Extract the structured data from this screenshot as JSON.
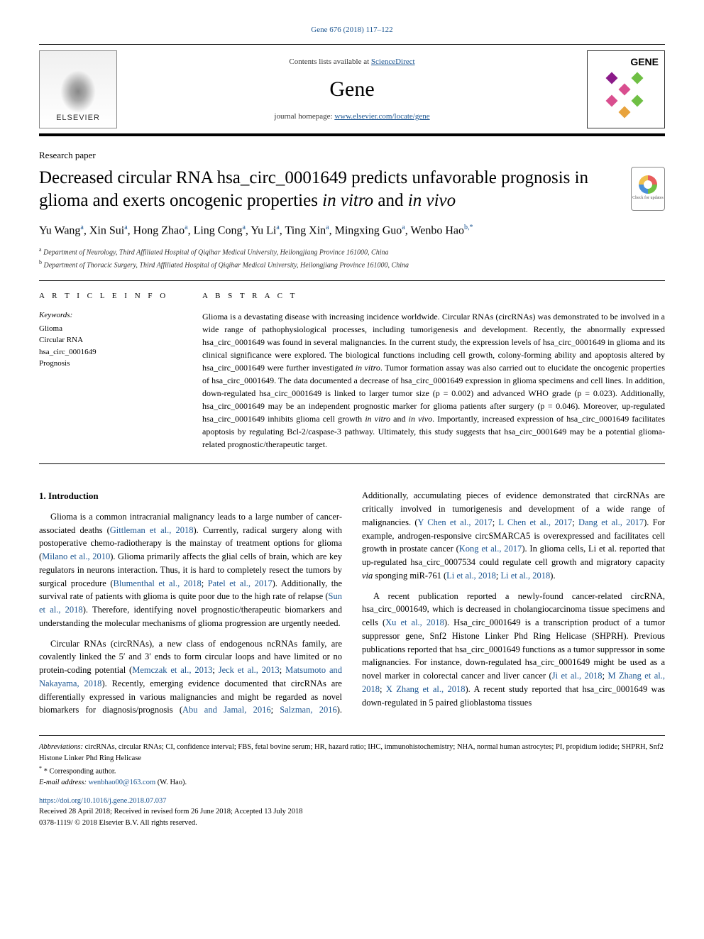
{
  "header": {
    "citation": "Gene 676 (2018) 117–122",
    "contents_prefix": "Contents lists available at ",
    "contents_link": "ScienceDirect",
    "journal_name": "Gene",
    "homepage_prefix": "journal homepage: ",
    "homepage_link": "www.elsevier.com/locate/gene",
    "publisher_name": "ELSEVIER",
    "gene_logo_text": "GENE",
    "check_updates_label": "Check for updates"
  },
  "article": {
    "type": "Research paper",
    "title_part1": "Decreased circular RNA hsa_circ_0001649 predicts unfavorable prognosis in glioma and exerts oncogenic properties ",
    "title_italic1": "in vitro",
    "title_and": " and ",
    "title_italic2": "in vivo",
    "authors_html": "Yu Wang",
    "authors": [
      {
        "name": "Yu Wang",
        "sup": "a"
      },
      {
        "name": "Xin Sui",
        "sup": "a"
      },
      {
        "name": "Hong Zhao",
        "sup": "a"
      },
      {
        "name": "Ling Cong",
        "sup": "a"
      },
      {
        "name": "Yu Li",
        "sup": "a"
      },
      {
        "name": "Ting Xin",
        "sup": "a"
      },
      {
        "name": "Mingxing Guo",
        "sup": "a"
      },
      {
        "name": "Wenbo Hao",
        "sup": "b,*"
      }
    ],
    "affiliations": [
      {
        "sup": "a",
        "text": "Department of Neurology, Third Affiliated Hospital of Qiqihar Medical University, Heilongjiang Province 161000, China"
      },
      {
        "sup": "b",
        "text": "Department of Thoracic Surgery, Third Affiliated Hospital of Qiqihar Medical University, Heilongjiang Province 161000, China"
      }
    ]
  },
  "info": {
    "label": "A R T I C L E  I N F O",
    "keywords_label": "Keywords:",
    "keywords": [
      "Glioma",
      "Circular RNA",
      "hsa_circ_0001649",
      "Prognosis"
    ]
  },
  "abstract": {
    "label": "A B S T R A C T",
    "text_pre": "Glioma is a devastating disease with increasing incidence worldwide. Circular RNAs (circRNAs) was demonstrated to be involved in a wide range of pathophysiological processes, including tumorigenesis and development. Recently, the abnormally expressed hsa_circ_0001649 was found in several malignancies. In the current study, the expression levels of hsa_circ_0001649 in glioma and its clinical significance were explored. The biological functions including cell growth, colony-forming ability and apoptosis altered by hsa_circ_0001649 were further investigated ",
    "italic1": "in vitro",
    "text_mid1": ". Tumor formation assay was also carried out to elucidate the oncogenic properties of hsa_circ_0001649. The data documented a decrease of hsa_circ_0001649 expression in glioma specimens and cell lines. In addition, down-regulated hsa_circ_0001649 is linked to larger tumor size (p = 0.002) and advanced WHO grade (p = 0.023). Additionally, hsa_circ_0001649 may be an independent prognostic marker for glioma patients after surgery (p = 0.046). Moreover, up-regulated hsa_circ_0001649 inhibits glioma cell growth ",
    "italic2": "in vitro",
    "text_and": " and ",
    "italic3": "in vivo",
    "text_post": ". Importantly, increased expression of hsa_circ_0001649 facilitates apoptosis by regulating Bcl-2/caspase-3 pathway. Ultimately, this study suggests that hsa_circ_0001649 may be a potential glioma-related prognostic/therapeutic target."
  },
  "body": {
    "intro_heading": "1. Introduction",
    "p1_a": "Glioma is a common intracranial malignancy leads to a large number of cancer-associated deaths (",
    "p1_l1": "Gittleman et al., 2018",
    "p1_b": "). Currently, radical surgery along with postoperative chemo-radiotherapy is the mainstay of treatment options for glioma (",
    "p1_l2": "Milano et al., 2010",
    "p1_c": "). Glioma primarily affects the glial cells of brain, which are key regulators in neurons interaction. Thus, it is hard to completely resect the tumors by surgical procedure (",
    "p1_l3": "Blumenthal et al., 2018",
    "p1_semi1": "; ",
    "p1_l4": "Patel et al., 2017",
    "p1_d": "). Additionally, the survival rate of patients with glioma is quite poor due to the high rate of relapse (",
    "p1_l5": "Sun et al., 2018",
    "p1_e": "). Therefore, identifying novel prognostic/therapeutic biomarkers and understanding the molecular mechanisms of glioma progression are urgently needed.",
    "p2_a": "Circular RNAs (circRNAs), a new class of endogenous ncRNAs family, are covalently linked the 5′ and 3′ ends to form circular loops and have limited or no protein-coding potential (",
    "p2_l1": "Memczak et al., 2013",
    "p2_semi1": "; ",
    "p2_l2": "Jeck et al., 2013",
    "p2_semi2": "; ",
    "p2_l3": "Matsumoto and Nakayama, 2018",
    "p2_b": "). Recently, emerging evidence documented that circRNAs are differentially expressed in various malignancies and might be regarded as novel biomarkers for diagnosis/prognosis (",
    "p2_l4": "Abu and Jamal, 2016",
    "p2_semi3": "; ",
    "p2_l5": "Salzman, 2016",
    "p2_c": "). Additionally, accumulating pieces of evidence demonstrated that circRNAs are critically involved in tumorigenesis and development of a wide range of malignancies. (",
    "p2_l6": "Y Chen et al., 2017",
    "p2_semi4": "; ",
    "p2_l7": "L Chen et al., 2017",
    "p2_semi5": "; ",
    "p2_l8": "Dang et al., 2017",
    "p2_d": "). For example, androgen-responsive circSMARCA5 is overexpressed and facilitates cell growth in prostate cancer (",
    "p2_l9": "Kong et al., 2017",
    "p2_e": "). In glioma cells, Li et al. reported that up-regulated hsa_circ_0007534 could regulate cell growth and migratory capacity ",
    "p2_it": "via",
    "p2_f": " sponging miR-761 (",
    "p2_l10": "Li et al., 2018",
    "p2_semi6": "; ",
    "p2_l11": "Li et al., 2018",
    "p2_g": ").",
    "p3_a": "A recent publication reported a newly-found cancer-related circRNA, hsa_circ_0001649, which is decreased in cholangiocarcinoma tissue specimens and cells (",
    "p3_l1": "Xu et al., 2018",
    "p3_b": "). Hsa_circ_0001649 is a transcription product of a tumor suppressor gene, Snf2 Histone Linker Phd Ring Helicase (SHPRH). Previous publications reported that hsa_circ_0001649 functions as a tumor suppressor in some malignancies. For instance, down-regulated hsa_circ_0001649 might be used as a novel marker in colorectal cancer and liver cancer (",
    "p3_l2": "Ji et al., 2018",
    "p3_semi1": "; ",
    "p3_l3": "M Zhang et al., 2018",
    "p3_semi2": "; ",
    "p3_l4": "X Zhang et al., 2018",
    "p3_c": "). A recent study reported that hsa_circ_0001649 was down-regulated in 5 paired glioblastoma tissues"
  },
  "footer": {
    "abbrev_label": "Abbreviations:",
    "abbrev_text": " circRNAs, circular RNAs; CI, confidence interval; FBS, fetal bovine serum; HR, hazard ratio; IHC, immunohistochemistry; NHA, normal human astrocytes; PI, propidium iodide; SHPRH, Snf2 Histone Linker Phd Ring Helicase",
    "corr_label": "* Corresponding author.",
    "email_label": "E-mail address: ",
    "email": "wenbhao00@163.com",
    "email_name": " (W. Hao).",
    "doi": "https://doi.org/10.1016/j.gene.2018.07.037",
    "received": "Received 28 April 2018; Received in revised form 26 June 2018; Accepted 13 July 2018",
    "issn": "0378-1119/ © 2018 Elsevier B.V. All rights reserved."
  },
  "colors": {
    "link": "#1a5490",
    "text": "#000000",
    "background": "#ffffff"
  }
}
